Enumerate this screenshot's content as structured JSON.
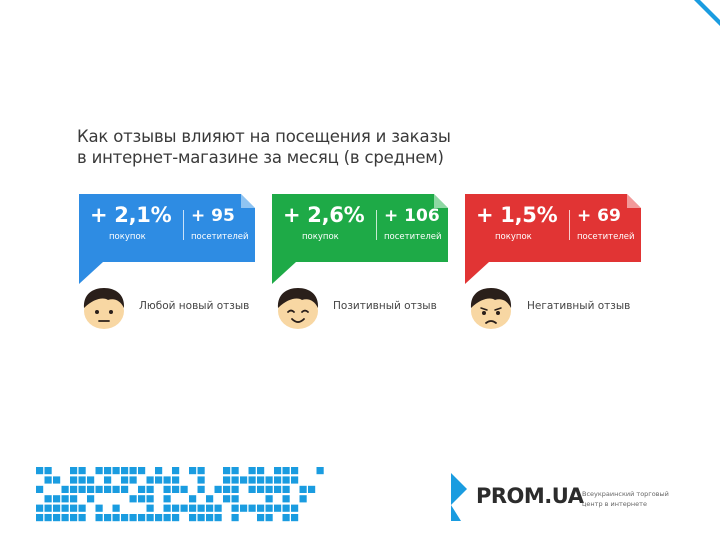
{
  "title": {
    "line1": "Как отзывы влияют на посещения и заказы",
    "line2": "в интернет-магазине за месяц (в среднем)"
  },
  "cards": [
    {
      "main_value": "+ 2,1%",
      "main_label": "покупок",
      "side_value": "+ 95",
      "side_label": "посетителей",
      "color": "#2e8ce3",
      "fold_color": "#8fc4f2",
      "face": "neutral",
      "face_label": "Любой новый отзыв"
    },
    {
      "main_value": "+ 2,6%",
      "main_label": "покупок",
      "side_value": "+ 106",
      "side_label": "посетителей",
      "color": "#1eaa47",
      "fold_color": "#8fd8a4",
      "face": "happy",
      "face_label": "Позитивный отзыв"
    },
    {
      "main_value": "+ 1,5%",
      "main_label": "покупок",
      "side_value": "+ 69",
      "side_label": "посетителей",
      "color": "#e13434",
      "fold_color": "#f29a9a",
      "face": "sad",
      "face_label": "Негативный отзыв"
    }
  ],
  "footer": {
    "brand": "PROM.UA",
    "tagline_line1": "Всеукраинский торговый",
    "tagline_line2": "центр в интернете",
    "accent_color": "#1a9ce0"
  },
  "icons": {
    "corner": "corner-triangle-icon",
    "mosaic": "pixel-mosaic-logo",
    "prom": "prom-logo-icon"
  }
}
